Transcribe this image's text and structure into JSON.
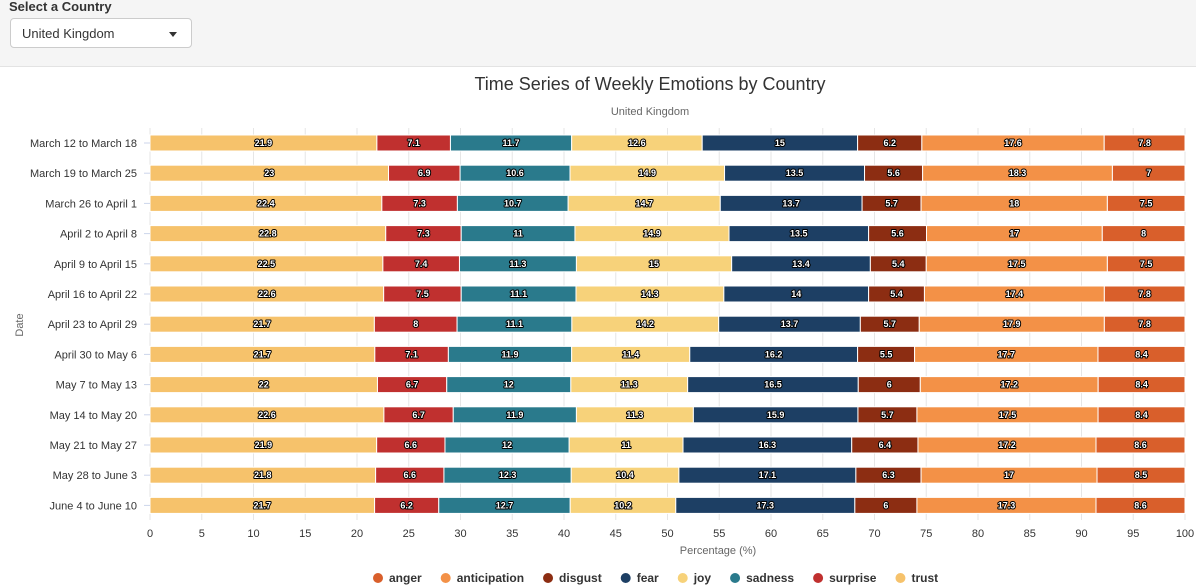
{
  "control": {
    "label": "Select a Country",
    "selected": "United Kingdom"
  },
  "chart_data": {
    "type": "bar",
    "orientation": "horizontal",
    "stacking": "percent",
    "title": "Time Series of Weekly Emotions by Country",
    "subtitle": "United Kingdom",
    "xlabel": "Percentage (%)",
    "ylabel": "Date",
    "xlim": [
      0,
      100
    ],
    "xticks": [
      0,
      5,
      10,
      15,
      20,
      25,
      30,
      35,
      40,
      45,
      50,
      55,
      60,
      65,
      70,
      75,
      80,
      85,
      90,
      95,
      100
    ],
    "grid": true,
    "legend_position": "bottom",
    "categories": [
      "March 12 to March 18",
      "March 19 to March 25",
      "March 26 to April 1",
      "April 2 to April 8",
      "April 9 to April 15",
      "April 16 to April 22",
      "April 23 to April 29",
      "April 30 to May 6",
      "May 7 to May 13",
      "May 14 to May 20",
      "May 21 to May 27",
      "May 28 to June 3",
      "June 4 to June 10"
    ],
    "stack_order": [
      "trust",
      "surprise",
      "sadness",
      "joy",
      "fear",
      "disgust",
      "anticipation",
      "anger"
    ],
    "series": [
      {
        "name": "anger",
        "color": "#d95f2b",
        "values": [
          7.8,
          7,
          7.5,
          8,
          7.5,
          7.8,
          7.8,
          8.4,
          8.4,
          8.4,
          8.6,
          8.5,
          8.6
        ]
      },
      {
        "name": "anticipation",
        "color": "#f39147",
        "values": [
          17.6,
          18.3,
          18,
          17,
          17.5,
          17.4,
          17.9,
          17.7,
          17.2,
          17.5,
          17.2,
          17,
          17.3
        ]
      },
      {
        "name": "disgust",
        "color": "#8c2d12",
        "values": [
          6.2,
          5.6,
          5.7,
          5.6,
          5.4,
          5.4,
          5.7,
          5.5,
          6,
          5.7,
          6.4,
          6.3,
          6
        ]
      },
      {
        "name": "fear",
        "color": "#1d3f64",
        "values": [
          15,
          13.5,
          13.7,
          13.5,
          13.4,
          14,
          13.7,
          16.2,
          16.5,
          15.9,
          16.3,
          17.1,
          17.3
        ]
      },
      {
        "name": "joy",
        "color": "#f7d27a",
        "values": [
          12.6,
          14.9,
          14.7,
          14.9,
          15,
          14.3,
          14.2,
          11.4,
          11.3,
          11.3,
          11,
          10.4,
          10.2
        ]
      },
      {
        "name": "sadness",
        "color": "#2a7a8c",
        "values": [
          11.7,
          10.6,
          10.7,
          11,
          11.3,
          11.1,
          11.1,
          11.9,
          12,
          11.9,
          12,
          12.3,
          12.7
        ]
      },
      {
        "name": "surprise",
        "color": "#c0302f",
        "values": [
          7.1,
          6.9,
          7.3,
          7.3,
          7.4,
          7.5,
          8,
          7.1,
          6.7,
          6.7,
          6.6,
          6.6,
          6.2
        ]
      },
      {
        "name": "trust",
        "color": "#f6c26b",
        "values": [
          21.9,
          23,
          22.4,
          22.8,
          22.5,
          22.6,
          21.7,
          21.7,
          22,
          22.6,
          21.9,
          21.8,
          21.7
        ]
      }
    ]
  }
}
